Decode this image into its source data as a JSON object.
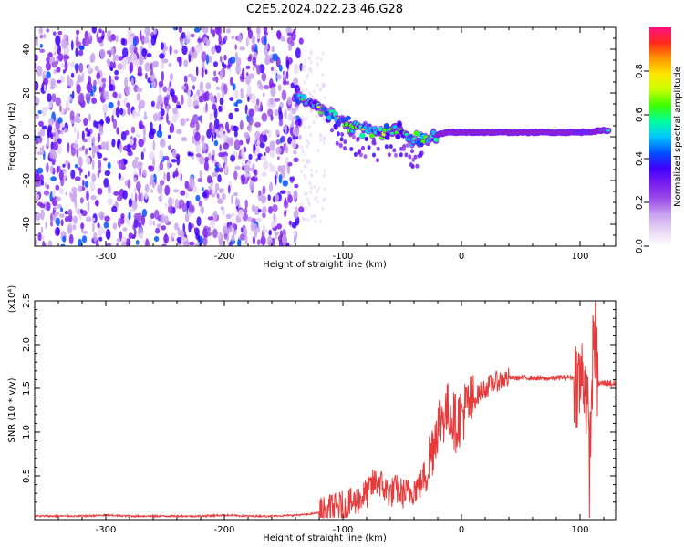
{
  "figure": {
    "title": "C2E5.2024.022.23.46.G28"
  },
  "colors": {
    "snr_line": "#e83a3a",
    "axis": "#000000",
    "background": "#ffffff",
    "colormap": [
      "#ffffff",
      "#e8d6f6",
      "#c9a4ee",
      "#9b4de8",
      "#7a1ef0",
      "#3f00ff",
      "#0052ff",
      "#00c8ff",
      "#00ff9c",
      "#3cff00",
      "#c8ff00",
      "#ffe600",
      "#ff9800",
      "#ff2a1a",
      "#ff1080"
    ]
  },
  "chart_data": [
    {
      "type": "heatmap",
      "title": "",
      "xlabel": "Height of straight line (km)",
      "ylabel": "Frequency (Hz)",
      "xlim": [
        -360,
        130
      ],
      "ylim": [
        -50,
        50
      ],
      "xticks": [
        -300,
        -200,
        -100,
        0,
        100
      ],
      "yticks": [
        -40,
        -20,
        0,
        20,
        40
      ],
      "colorbar": {
        "label": "Normalized spectral amplitude",
        "range": [
          0,
          1
        ],
        "ticks": [
          0.0,
          0.2,
          0.4,
          0.6,
          0.8
        ]
      },
      "features": {
        "noise_region_x": [
          -360,
          -135
        ],
        "signal_ridge": [
          [
            -140,
            18
          ],
          [
            -130,
            16
          ],
          [
            -120,
            13
          ],
          [
            -110,
            10
          ],
          [
            -100,
            7
          ],
          [
            -90,
            5
          ],
          [
            -80,
            3
          ],
          [
            -70,
            2
          ],
          [
            -60,
            4
          ],
          [
            -50,
            2
          ],
          [
            -40,
            -2
          ],
          [
            -30,
            0
          ],
          [
            -20,
            1
          ],
          [
            -10,
            2
          ],
          [
            0,
            2
          ],
          [
            20,
            2
          ],
          [
            40,
            2
          ],
          [
            60,
            2
          ],
          [
            80,
            2
          ],
          [
            100,
            2
          ],
          [
            125,
            3
          ]
        ],
        "peak_amplitude_x": [
          -20,
          125
        ]
      }
    },
    {
      "type": "line",
      "title": "",
      "xlabel": "Height of straight line (km)",
      "ylabel": "SNR (10 * v/v)",
      "y_multiplier": "(x10⁴)",
      "xlim": [
        -360,
        130
      ],
      "ylim": [
        0,
        2.5
      ],
      "xticks": [
        -300,
        -200,
        -100,
        0,
        100
      ],
      "yticks": [
        0.5,
        1.0,
        1.5,
        2.0,
        2.5
      ],
      "series": [
        {
          "x": [
            -360,
            -340,
            -320,
            -300,
            -280,
            -260,
            -240,
            -220,
            -200,
            -180,
            -160,
            -140,
            -130,
            -120,
            -110,
            -100,
            -90,
            -80,
            -75,
            -70,
            -65,
            -60,
            -55,
            -50,
            -45,
            -40,
            -35,
            -30,
            -25,
            -20,
            -15,
            -10,
            -5,
            0,
            5,
            10,
            15,
            20,
            25,
            30,
            35,
            40,
            50,
            60,
            70,
            80,
            90,
            95,
            100,
            103,
            106,
            108,
            110,
            112,
            115,
            120,
            125,
            130
          ],
          "y": [
            0.04,
            0.04,
            0.04,
            0.05,
            0.04,
            0.04,
            0.04,
            0.04,
            0.05,
            0.04,
            0.04,
            0.05,
            0.06,
            0.08,
            0.12,
            0.15,
            0.2,
            0.3,
            0.4,
            0.45,
            0.35,
            0.3,
            0.35,
            0.3,
            0.3,
            0.35,
            0.4,
            0.55,
            0.8,
            1.1,
            1.2,
            1.25,
            1.1,
            1.2,
            1.3,
            1.35,
            1.45,
            1.5,
            1.55,
            1.58,
            1.6,
            1.62,
            1.62,
            1.62,
            1.61,
            1.62,
            1.63,
            1.62,
            1.55,
            1.7,
            1.35,
            0.5,
            1.6,
            2.2,
            1.55,
            1.56,
            1.56,
            1.55
          ]
        }
      ]
    }
  ]
}
